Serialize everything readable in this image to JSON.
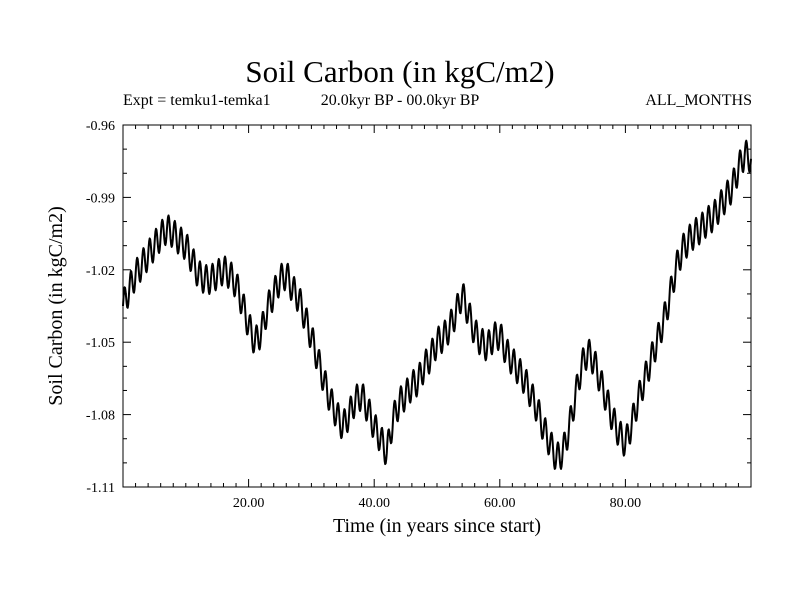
{
  "chart_data": {
    "type": "line",
    "title": "Soil Carbon (in kgC/m2)",
    "subtitle_left": "Expt = temku1-temka1",
    "subtitle_center": "20.0kyr BP - 00.0kyr BP",
    "subtitle_right": "ALL_MONTHS",
    "xlabel": "Time (in years since start)",
    "ylabel": "Soil Carbon (in kgC/m2)",
    "xlim": [
      0,
      100
    ],
    "ylim": [
      -1.11,
      -0.96
    ],
    "xticks": [
      20,
      40,
      60,
      80
    ],
    "xtick_labels": [
      "20.00",
      "40.00",
      "60.00",
      "80.00"
    ],
    "yticks": [
      -0.96,
      -0.99,
      -1.02,
      -1.05,
      -1.08,
      -1.11
    ],
    "ytick_labels": [
      "-0.96",
      "-0.99",
      "-1.02",
      "-1.05",
      "-1.08",
      "-1.11"
    ],
    "grid": false,
    "seasonal_amplitude": 0.006,
    "series": [
      {
        "name": "Soil Carbon",
        "x": [
          0,
          1,
          2,
          3,
          4,
          5,
          6,
          7,
          8,
          9,
          10,
          11,
          12,
          13,
          14,
          15,
          16,
          17,
          18,
          19,
          20,
          21,
          22,
          23,
          24,
          25,
          26,
          27,
          28,
          29,
          30,
          31,
          32,
          33,
          34,
          35,
          36,
          37,
          38,
          39,
          40,
          41,
          42,
          43,
          44,
          45,
          46,
          47,
          48,
          49,
          50,
          51,
          52,
          53,
          54,
          55,
          56,
          57,
          58,
          59,
          60,
          61,
          62,
          63,
          64,
          65,
          66,
          67,
          68,
          69,
          70,
          71,
          72,
          73,
          74,
          75,
          76,
          77,
          78,
          79,
          80,
          81,
          82,
          83,
          84,
          85,
          86,
          87,
          88,
          89,
          90,
          91,
          92,
          93,
          94,
          95,
          96,
          97,
          98,
          99,
          100
        ],
        "values": [
          -1.035,
          -1.028,
          -1.022,
          -1.018,
          -1.014,
          -1.01,
          -1.006,
          -1.003,
          -1.005,
          -1.008,
          -1.01,
          -1.016,
          -1.022,
          -1.024,
          -1.024,
          -1.022,
          -1.02,
          -1.022,
          -1.026,
          -1.034,
          -1.043,
          -1.05,
          -1.046,
          -1.036,
          -1.03,
          -1.024,
          -1.022,
          -1.028,
          -1.032,
          -1.04,
          -1.048,
          -1.057,
          -1.066,
          -1.074,
          -1.08,
          -1.085,
          -1.08,
          -1.074,
          -1.072,
          -1.078,
          -1.085,
          -1.09,
          -1.096,
          -1.082,
          -1.075,
          -1.072,
          -1.068,
          -1.066,
          -1.06,
          -1.056,
          -1.05,
          -1.048,
          -1.044,
          -1.038,
          -1.03,
          -1.038,
          -1.046,
          -1.05,
          -1.052,
          -1.048,
          -1.047,
          -1.054,
          -1.058,
          -1.062,
          -1.066,
          -1.072,
          -1.078,
          -1.086,
          -1.092,
          -1.098,
          -1.096,
          -1.086,
          -1.073,
          -1.06,
          -1.054,
          -1.058,
          -1.066,
          -1.074,
          -1.082,
          -1.088,
          -1.092,
          -1.084,
          -1.074,
          -1.066,
          -1.058,
          -1.05,
          -1.042,
          -1.032,
          -1.02,
          -1.012,
          -1.008,
          -1.005,
          -1.003,
          -1.0,
          -0.998,
          -0.994,
          -0.99,
          -0.986,
          -0.978,
          -0.972,
          -0.974
        ]
      }
    ]
  }
}
